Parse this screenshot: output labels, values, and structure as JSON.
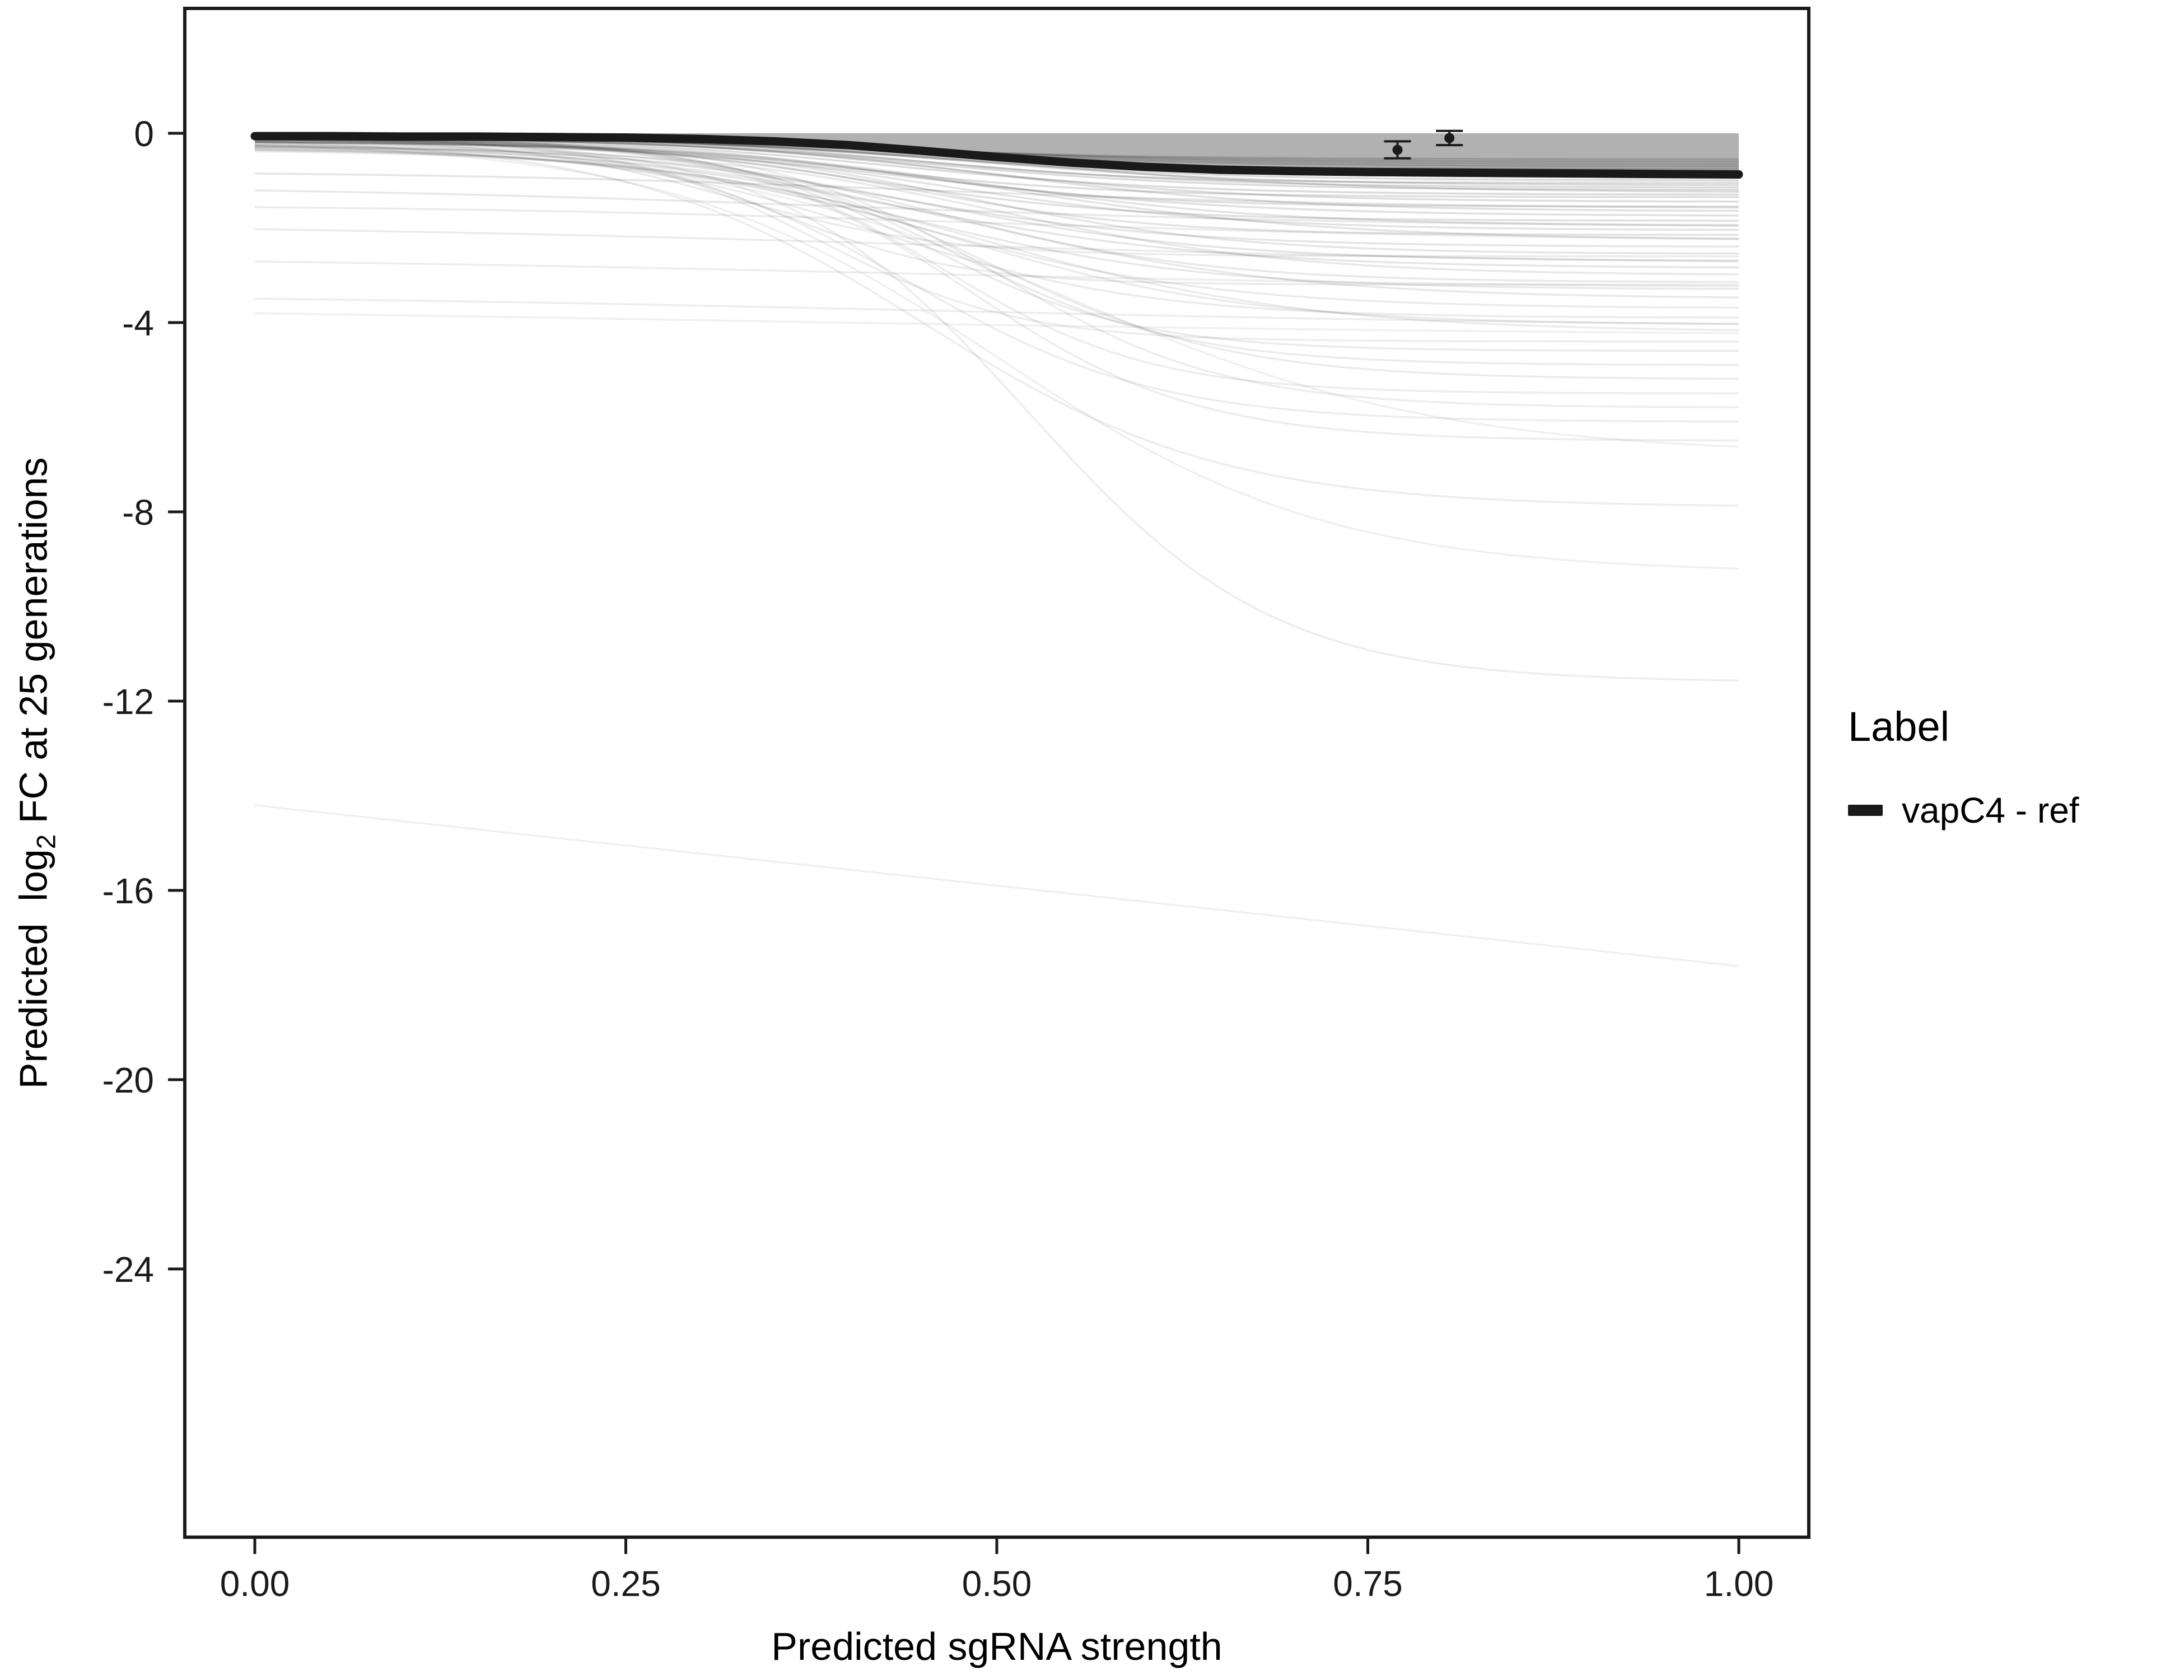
{
  "chart_data": {
    "type": "line",
    "title": "",
    "xlabel": "Predicted sgRNA strength",
    "ylabel": {
      "pre": "Predicted  log",
      "sub": "2",
      "post": " FC at 25 generations"
    },
    "xlim": [
      0,
      1
    ],
    "ylim": [
      -29.5,
      2.6
    ],
    "grid": false,
    "x_ticks": {
      "values": [
        0,
        0.25,
        0.5,
        0.75,
        1.0
      ],
      "labels": [
        "0.00",
        "0.25",
        "0.50",
        "0.75",
        "1.00"
      ]
    },
    "y_ticks": {
      "values": [
        0,
        -4,
        -8,
        -12,
        -16,
        -20,
        -24
      ],
      "labels": [
        "0",
        "-4",
        "-8",
        "-12",
        "-16",
        "-20",
        "-24"
      ]
    },
    "legend": {
      "title": "Label",
      "position": "right",
      "items": [
        {
          "label": "vapC4 - ref",
          "color": "#1a1a1a",
          "shape": "line"
        }
      ]
    },
    "main_series": {
      "name": "vapC4 - ref",
      "color": "#1a1a1a",
      "width": 15,
      "x": [
        0,
        0.05,
        0.1,
        0.15,
        0.2,
        0.25,
        0.3,
        0.35,
        0.4,
        0.45,
        0.5,
        0.55,
        0.6,
        0.65,
        0.7,
        0.75,
        0.8,
        0.85,
        0.9,
        0.95,
        1.0
      ],
      "y": [
        -0.06,
        -0.06,
        -0.07,
        -0.07,
        -0.08,
        -0.09,
        -0.12,
        -0.17,
        -0.25,
        -0.37,
        -0.5,
        -0.62,
        -0.71,
        -0.77,
        -0.8,
        -0.82,
        -0.83,
        -0.84,
        -0.85,
        -0.86,
        -0.87
      ]
    },
    "band": {
      "top": 0.0,
      "color": "#a3a3a3",
      "opacity": 0.85
    },
    "points": [
      {
        "x": 0.77,
        "y": -0.35,
        "yerr": 0.18
      },
      {
        "x": 0.805,
        "y": -0.1,
        "yerr": 0.15
      }
    ],
    "background_series_format": [
      "start",
      "end",
      "x0",
      "k",
      "opacity",
      "shape(0=sigmoid,1=linear)"
    ],
    "background_series": [
      [
        -0.05,
        -0.55,
        0.4,
        10,
        0.15,
        0
      ],
      [
        -0.06,
        -0.65,
        0.45,
        10,
        0.15,
        0
      ],
      [
        -0.07,
        -0.75,
        0.42,
        11,
        0.15,
        0
      ],
      [
        -0.08,
        -0.85,
        0.48,
        9,
        0.15,
        0
      ],
      [
        -0.05,
        -0.95,
        0.5,
        10,
        0.14,
        0
      ],
      [
        -0.09,
        -1.05,
        0.44,
        12,
        0.14,
        0
      ],
      [
        -0.1,
        -1.15,
        0.46,
        10,
        0.14,
        0
      ],
      [
        -0.06,
        -1.25,
        0.52,
        9,
        0.13,
        0
      ],
      [
        -0.12,
        -1.35,
        0.4,
        11,
        0.13,
        0
      ],
      [
        -0.08,
        -1.45,
        0.47,
        10,
        0.13,
        0
      ],
      [
        -0.14,
        -1.55,
        0.43,
        12,
        0.12,
        0
      ],
      [
        -0.1,
        -1.65,
        0.5,
        10,
        0.12,
        0
      ],
      [
        -0.16,
        -1.75,
        0.45,
        9,
        0.12,
        0
      ],
      [
        -0.12,
        -1.85,
        0.41,
        11,
        0.12,
        0
      ],
      [
        -0.18,
        -1.95,
        0.49,
        10,
        0.11,
        0
      ],
      [
        -0.14,
        -2.05,
        0.46,
        10,
        0.11,
        0
      ],
      [
        -0.2,
        -2.15,
        0.44,
        12,
        0.11,
        0
      ],
      [
        -0.16,
        -2.25,
        0.51,
        9,
        0.11,
        0
      ],
      [
        -0.22,
        -2.4,
        0.42,
        10,
        0.1,
        0
      ],
      [
        -0.18,
        -2.55,
        0.48,
        11,
        0.1,
        0
      ],
      [
        -0.25,
        -2.7,
        0.45,
        10,
        0.1,
        0
      ],
      [
        -0.2,
        -2.85,
        0.43,
        9,
        0.1,
        0
      ],
      [
        -0.28,
        -3.0,
        0.5,
        10,
        0.09,
        0
      ],
      [
        -0.22,
        -3.15,
        0.46,
        11,
        0.09,
        0
      ],
      [
        -0.3,
        -3.3,
        0.44,
        10,
        0.09,
        0
      ],
      [
        -0.25,
        -3.5,
        0.48,
        9,
        0.09,
        0
      ],
      [
        -0.32,
        -3.7,
        0.45,
        10,
        0.08,
        0
      ],
      [
        -0.28,
        -3.9,
        0.42,
        11,
        0.08,
        0
      ],
      [
        -0.35,
        -4.05,
        0.47,
        10,
        0.08,
        0
      ],
      [
        -0.3,
        -4.2,
        0.49,
        9,
        0.08,
        0
      ],
      [
        -0.8,
        -1.6,
        0.45,
        6,
        0.1,
        0
      ],
      [
        -1.1,
        -2.0,
        0.4,
        5,
        0.09,
        0
      ],
      [
        -1.5,
        -2.3,
        0.5,
        5,
        0.08,
        0
      ],
      [
        -1.9,
        -2.8,
        0.45,
        4,
        0.08,
        0
      ],
      [
        -2.6,
        -3.3,
        0.42,
        4,
        0.07,
        0
      ],
      [
        -3.4,
        -4.1,
        0.46,
        4,
        0.07,
        0
      ],
      [
        -3.6,
        -4.3,
        0.3,
        3,
        0.06,
        0
      ],
      [
        -0.1,
        -4.6,
        0.45,
        14,
        0.08,
        0
      ],
      [
        -0.12,
        -4.9,
        0.47,
        13,
        0.08,
        0
      ],
      [
        -0.15,
        -5.2,
        0.49,
        12,
        0.08,
        0
      ],
      [
        -0.1,
        -5.5,
        0.46,
        14,
        0.07,
        0
      ],
      [
        -0.12,
        -5.8,
        0.5,
        13,
        0.07,
        0
      ],
      [
        -0.15,
        -6.1,
        0.44,
        12,
        0.07,
        0
      ],
      [
        -0.1,
        -6.5,
        0.48,
        13,
        0.07,
        0
      ],
      [
        -0.2,
        -6.8,
        0.55,
        8,
        0.06,
        0
      ],
      [
        -0.1,
        -7.9,
        0.45,
        10,
        0.07,
        0
      ],
      [
        -0.15,
        -9.3,
        0.5,
        9,
        0.06,
        0
      ],
      [
        -0.1,
        -11.6,
        0.52,
        12,
        0.07,
        0
      ],
      [
        -14.2,
        -17.6,
        0,
        0,
        0.06,
        1
      ],
      [
        -0.1,
        -3.2,
        0.35,
        16,
        0.08,
        0
      ],
      [
        -0.12,
        -4.4,
        0.38,
        15,
        0.07,
        0
      ],
      [
        -0.1,
        -2.6,
        0.32,
        14,
        0.08,
        0
      ],
      [
        -0.05,
        -0.6,
        0.43,
        10,
        0.16,
        0
      ],
      [
        -0.05,
        -0.7,
        0.45,
        10,
        0.16,
        0
      ],
      [
        -0.06,
        -0.8,
        0.47,
        10,
        0.15,
        0
      ],
      [
        -0.06,
        -0.9,
        0.44,
        10,
        0.15,
        0
      ],
      [
        -0.07,
        -1.0,
        0.46,
        10,
        0.15,
        0
      ],
      [
        -0.07,
        -1.1,
        0.48,
        10,
        0.14,
        0
      ],
      [
        -0.08,
        -1.2,
        0.45,
        10,
        0.14,
        0
      ],
      [
        -0.08,
        -1.3,
        0.43,
        10,
        0.14,
        0
      ]
    ]
  }
}
